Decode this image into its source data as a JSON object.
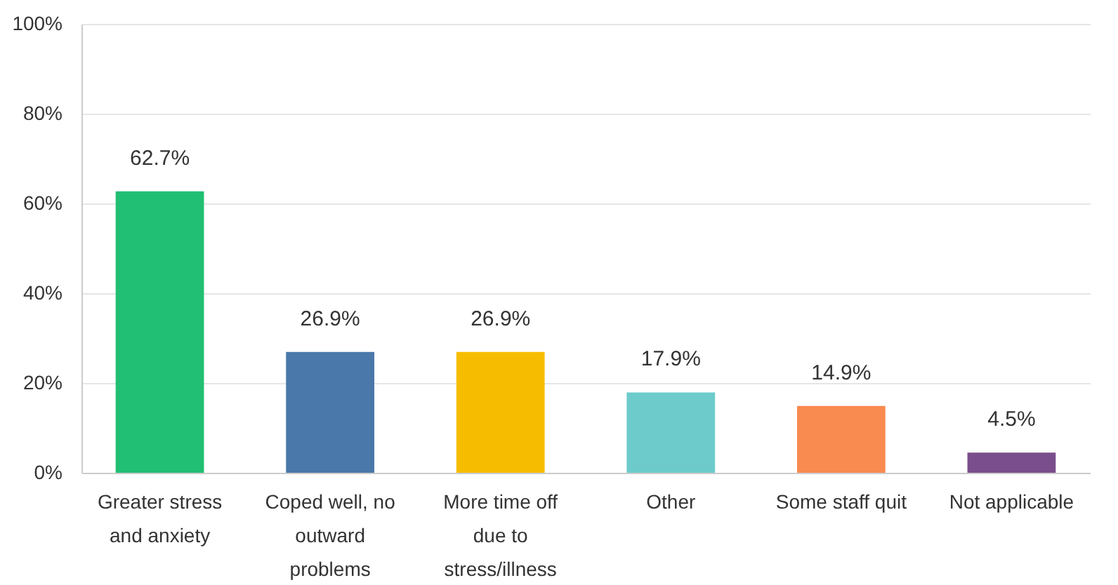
{
  "chart_data": {
    "type": "bar",
    "categories": [
      "Greater stress and anxiety",
      "Coped well, no outward problems",
      "More time off due to stress/illness",
      "Other",
      "Some staff quit",
      "Not applicable"
    ],
    "values": [
      62.7,
      26.9,
      26.9,
      17.9,
      14.9,
      4.5
    ],
    "value_labels": [
      "62.7%",
      "26.9%",
      "26.9%",
      "17.9%",
      "14.9%",
      "4.5%"
    ],
    "colors": [
      "#21bf73",
      "#4a78aa",
      "#f6bd00",
      "#6dcbcb",
      "#f98a50",
      "#7a4e8c"
    ],
    "ylim": [
      0,
      100
    ],
    "yticks": [
      {
        "value": 0,
        "label": "0%"
      },
      {
        "value": 20,
        "label": "20%"
      },
      {
        "value": 40,
        "label": "40%"
      },
      {
        "value": 60,
        "label": "60%"
      },
      {
        "value": 80,
        "label": "80%"
      },
      {
        "value": 100,
        "label": "100%"
      }
    ],
    "grid": "y"
  }
}
